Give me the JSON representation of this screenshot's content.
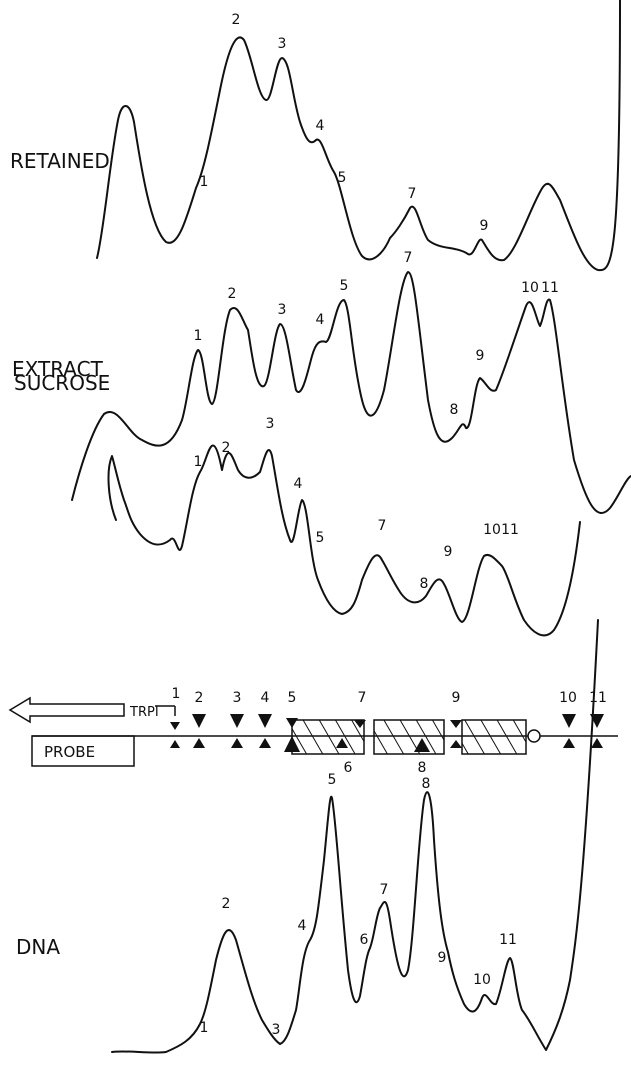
{
  "panels": [
    {
      "id": "retained",
      "label": "RETAINED",
      "peaks": [
        "1",
        "2",
        "3",
        "4",
        "5",
        "7",
        "9"
      ]
    },
    {
      "id": "extract",
      "label": "EXTRACT",
      "peaks": [
        "1",
        "2",
        "3",
        "4",
        "5",
        "7",
        "8",
        "9",
        "10",
        "11"
      ]
    },
    {
      "id": "sucrose",
      "label": "SUCROSE",
      "peaks": [
        "1",
        "2",
        "3",
        "4",
        "5",
        "7",
        "8",
        "9",
        "10",
        "11"
      ]
    },
    {
      "id": "dna",
      "label": "DNA",
      "peaks": [
        "1",
        "2",
        "3",
        "4",
        "5",
        "6",
        "7",
        "8",
        "9",
        "10",
        "11"
      ]
    }
  ],
  "map": {
    "gene_label": "TRPI",
    "probe_label": "PROBE",
    "sites": [
      "1",
      "2",
      "3",
      "4",
      "5",
      "6",
      "7",
      "8",
      "9",
      "10",
      "11"
    ]
  }
}
